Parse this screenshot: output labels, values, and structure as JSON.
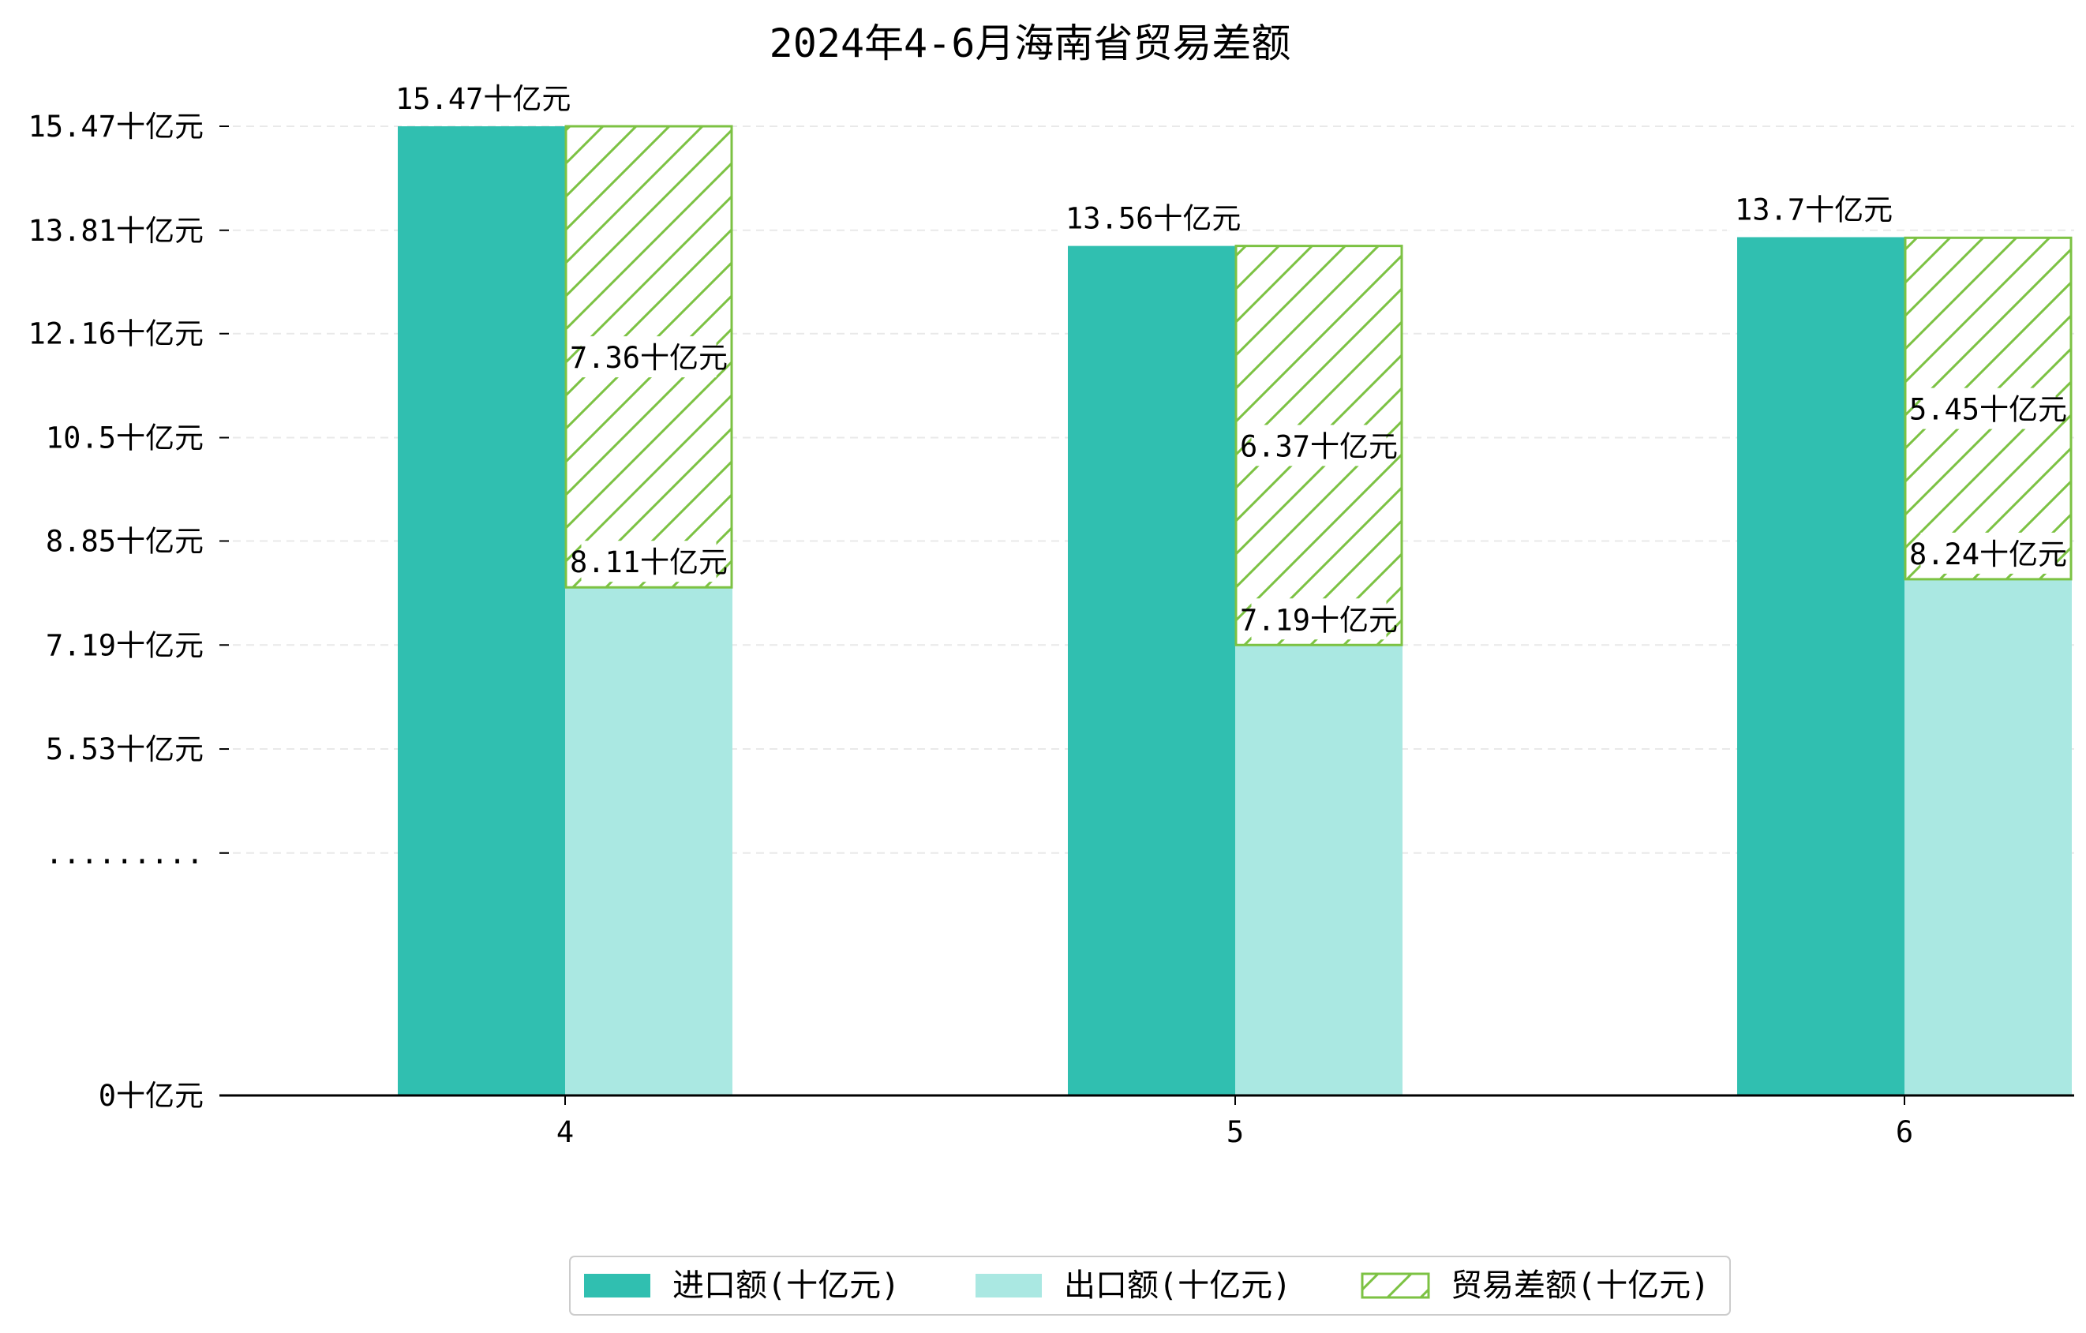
{
  "chart_data": {
    "type": "bar",
    "title": "2024年4-6月海南省贸易差额",
    "xlabel": "",
    "ylabel": "",
    "categories": [
      "4",
      "5",
      "6"
    ],
    "ylim": [
      0,
      15.47
    ],
    "grid": true,
    "legend_position": "bottom-center",
    "y_ticks": [
      {
        "value": 0,
        "label": "0十亿元"
      },
      {
        "value": 3.87,
        "label": "........."
      },
      {
        "value": 5.53,
        "label": "5.53十亿元"
      },
      {
        "value": 7.19,
        "label": "7.19十亿元"
      },
      {
        "value": 8.85,
        "label": "8.85十亿元"
      },
      {
        "value": 10.5,
        "label": "10.5十亿元"
      },
      {
        "value": 12.16,
        "label": "12.16十亿元"
      },
      {
        "value": 13.81,
        "label": "13.81十亿元"
      },
      {
        "value": 15.47,
        "label": "15.47十亿元"
      }
    ],
    "series": [
      {
        "name": "进口额(十亿元)",
        "values": [
          15.47,
          13.56,
          13.7
        ],
        "labels": [
          "15.47十亿元",
          "13.56十亿元",
          "13.7十亿元"
        ],
        "color": "#30bfb0"
      },
      {
        "name": "出口额(十亿元)",
        "values": [
          8.11,
          7.19,
          8.24
        ],
        "labels": [
          "8.11十亿元",
          "7.19十亿元",
          "8.24十亿元"
        ],
        "color": "#aae8e2"
      },
      {
        "name": "贸易差额(十亿元)",
        "values": [
          7.36,
          6.37,
          5.45
        ],
        "labels": [
          "7.36十亿元",
          "6.37十亿元",
          "5.45十亿元"
        ],
        "color": "#7cc243",
        "pattern": "hatch"
      }
    ]
  }
}
